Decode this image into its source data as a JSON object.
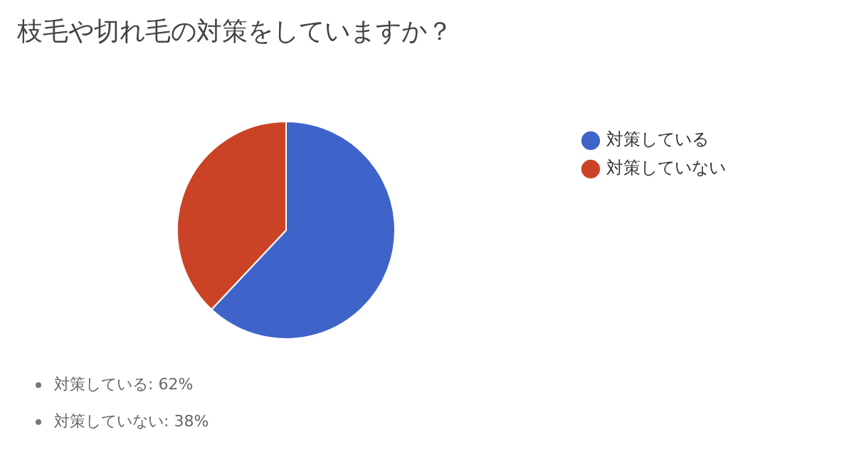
{
  "chart_data": {
    "type": "pie",
    "title": "枝毛や切れ毛の対策をしていますか？",
    "categories": [
      "対策している",
      "対策していない"
    ],
    "values": [
      62,
      38
    ],
    "colors": [
      "#3f64c9",
      "#cb4326"
    ],
    "legend": "right",
    "annotations": [
      "対策している: 62%",
      "対策していない: 38%"
    ]
  }
}
